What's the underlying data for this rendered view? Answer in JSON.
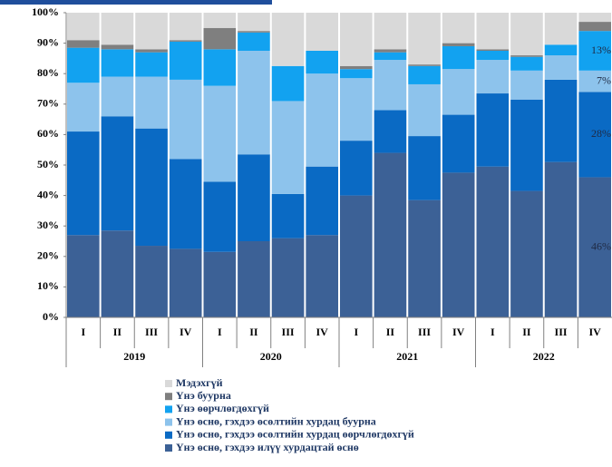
{
  "chart_data": {
    "type": "stacked_bar",
    "categories": [
      "I",
      "II",
      "III",
      "IV",
      "I",
      "II",
      "III",
      "IV",
      "I",
      "II",
      "III",
      "IV",
      "I",
      "II",
      "III",
      "IV"
    ],
    "groups": [
      {
        "label": "2019",
        "size": 4
      },
      {
        "label": "2020",
        "size": 4
      },
      {
        "label": "2021",
        "size": 4
      },
      {
        "label": "2022",
        "size": 4
      }
    ],
    "ylim": [
      0,
      100
    ],
    "yticks": [
      {
        "value": 0,
        "label": "0%"
      },
      {
        "value": 10,
        "label": "10%"
      },
      {
        "value": 20,
        "label": "20%"
      },
      {
        "value": 30,
        "label": "30%"
      },
      {
        "value": 40,
        "label": "40%"
      },
      {
        "value": 50,
        "label": "50%"
      },
      {
        "value": 60,
        "label": "60%"
      },
      {
        "value": 70,
        "label": "70%"
      },
      {
        "value": 80,
        "label": "80%"
      },
      {
        "value": 90,
        "label": "90%"
      },
      {
        "value": 100,
        "label": "100%"
      }
    ],
    "series": [
      {
        "name": "Үнэ өснө, гэхдээ илүү хурдацтай өснө",
        "color": "#3c6196",
        "values": [
          27,
          28.5,
          23.5,
          22.5,
          21.5,
          25,
          26,
          27,
          40,
          54,
          38.5,
          47.5,
          49.5,
          41.5,
          51,
          46
        ],
        "value_labels": [
          null,
          null,
          null,
          null,
          null,
          null,
          null,
          null,
          null,
          null,
          null,
          null,
          null,
          null,
          null,
          "46%"
        ]
      },
      {
        "name": "Үнэ өснө, гэхдээ өсөлтийн хурдац өөрчлөгдөхгүй",
        "color": "#0a6ac4",
        "values": [
          34,
          37.5,
          38.5,
          29.5,
          23,
          28.5,
          14.5,
          22.5,
          18,
          14,
          21,
          19,
          24,
          30,
          27,
          28
        ],
        "value_labels": [
          null,
          null,
          null,
          null,
          null,
          null,
          null,
          null,
          null,
          null,
          null,
          null,
          null,
          null,
          null,
          "28%"
        ]
      },
      {
        "name": "Үнэ өснө, гэхдээ өсөлтийн хурдац буурна",
        "color": "#8dc3ec",
        "values": [
          16,
          13,
          17,
          26,
          31.5,
          34,
          30.5,
          30.5,
          20.5,
          16.5,
          17,
          15,
          11,
          9.5,
          8,
          7
        ],
        "value_labels": [
          null,
          null,
          null,
          null,
          null,
          null,
          null,
          null,
          null,
          null,
          null,
          null,
          null,
          null,
          null,
          "7%"
        ]
      },
      {
        "name": "Үнэ өөрчлөгдөхгүй",
        "color": "#12a2f0",
        "values": [
          11.5,
          9,
          8,
          12.5,
          12,
          6,
          11.5,
          7.5,
          3,
          2.5,
          6,
          7.5,
          3,
          4.5,
          3.5,
          13
        ],
        "value_labels": [
          null,
          null,
          null,
          null,
          null,
          null,
          null,
          null,
          null,
          null,
          null,
          null,
          null,
          null,
          null,
          "13%"
        ]
      },
      {
        "name": "Үнэ буурна",
        "color": "#7f7f7f",
        "values": [
          2.5,
          1.5,
          1,
          0.5,
          7,
          0.5,
          0,
          0,
          1,
          1,
          0.5,
          1,
          0.5,
          0.5,
          0,
          3
        ]
      },
      {
        "name": "Мэдэхгүй",
        "color": "#d9d9d9",
        "values": [
          9,
          10.5,
          12,
          9,
          5,
          6,
          17.5,
          12.5,
          17.5,
          12,
          17,
          10,
          12,
          14,
          10.5,
          3
        ]
      }
    ]
  }
}
